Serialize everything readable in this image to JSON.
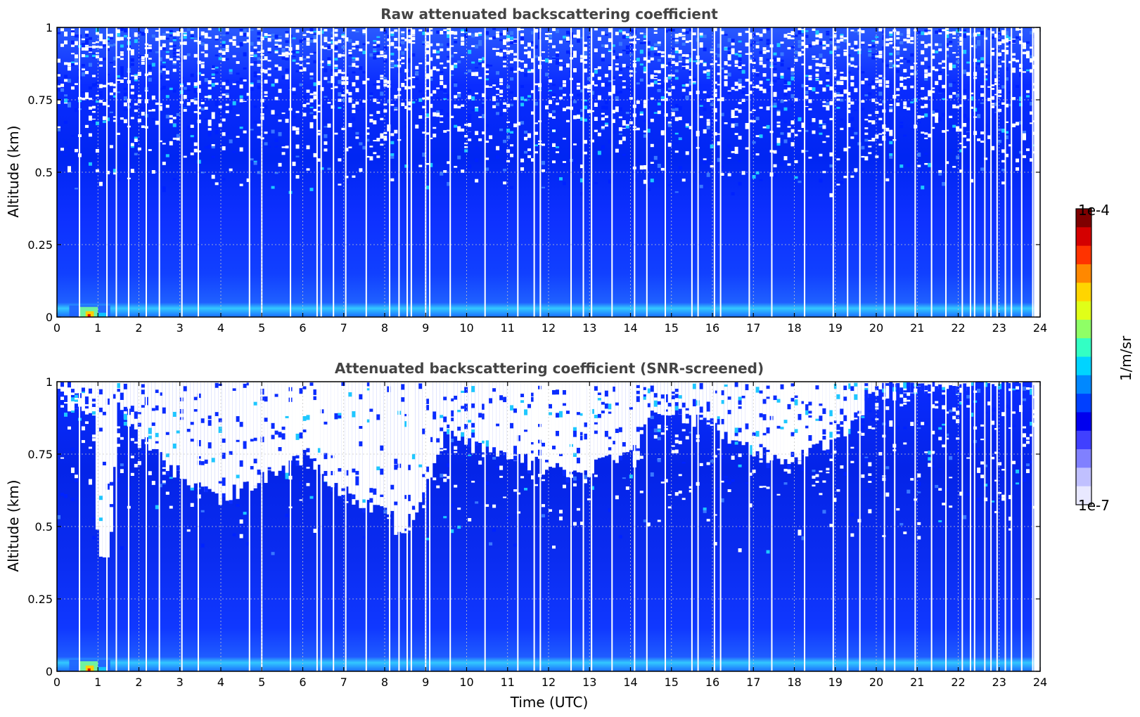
{
  "chart_data": [
    {
      "type": "heatmap",
      "title": "Raw attenuated backscattering coefficient",
      "xlabel": "",
      "ylabel": "Altitude (km)",
      "xlim": [
        0,
        24
      ],
      "ylim": [
        0,
        1
      ],
      "xticks": [
        "0",
        "1",
        "2",
        "3",
        "4",
        "5",
        "6",
        "7",
        "8",
        "9",
        "10",
        "11",
        "12",
        "13",
        "14",
        "15",
        "16",
        "17",
        "18",
        "19",
        "20",
        "21",
        "22",
        "23",
        "24"
      ],
      "yticks": [
        "0",
        "0.25",
        "0.5",
        "0.75",
        "1"
      ],
      "grid": true,
      "colormap": "jet",
      "profiles": {
        "surface_layer_top_km": 0.04,
        "aerosol_peak_hours": [
          0.3,
          1.3
        ],
        "noise_onset_altitude_km": 0.4,
        "gaps_hours": [
          0.55,
          1.22,
          1.45,
          1.75,
          2.18,
          2.5,
          3.05,
          3.45,
          4.7,
          5.0,
          5.7,
          6.35,
          6.45,
          6.75,
          7.05,
          7.55,
          8.12,
          8.35,
          8.55,
          8.65,
          9.0,
          9.1,
          9.6,
          10.45,
          11.25,
          11.65,
          11.8,
          12.55,
          12.85,
          13.05,
          13.55,
          14.1,
          14.4,
          14.85,
          15.5,
          15.65,
          16.05,
          16.2,
          16.9,
          17.45,
          18.25,
          18.95,
          19.3,
          19.6,
          20.2,
          20.45,
          20.95,
          21.35,
          21.7,
          22.1,
          22.3,
          22.4,
          22.65,
          22.8,
          22.95,
          23.15,
          23.3,
          23.55,
          23.82
        ]
      }
    },
    {
      "type": "heatmap",
      "title": "Attenuated backscattering coefficient (SNR-screened)",
      "xlabel": "Time (UTC)",
      "ylabel": "Altitude (km)",
      "xlim": [
        0,
        24
      ],
      "ylim": [
        0,
        1
      ],
      "xticks": [
        "0",
        "1",
        "2",
        "3",
        "4",
        "5",
        "6",
        "7",
        "8",
        "9",
        "10",
        "11",
        "12",
        "13",
        "14",
        "15",
        "16",
        "17",
        "18",
        "19",
        "20",
        "21",
        "22",
        "23",
        "24"
      ],
      "yticks": [
        "0",
        "0.25",
        "0.5",
        "0.75",
        "1"
      ],
      "grid": true,
      "colormap": "jet",
      "screened_top_km": [
        [
          0.0,
          0.95
        ],
        [
          0.4,
          0.92
        ],
        [
          0.9,
          0.9
        ],
        [
          1.0,
          0.42
        ],
        [
          1.3,
          0.38
        ],
        [
          1.5,
          0.9
        ],
        [
          2.0,
          0.8
        ],
        [
          3.0,
          0.68
        ],
        [
          4.0,
          0.6
        ],
        [
          5.0,
          0.66
        ],
        [
          6.0,
          0.74
        ],
        [
          7.0,
          0.62
        ],
        [
          7.5,
          0.56
        ],
        [
          8.0,
          0.6
        ],
        [
          8.4,
          0.45
        ],
        [
          8.8,
          0.58
        ],
        [
          9.5,
          0.82
        ],
        [
          10.5,
          0.76
        ],
        [
          11.5,
          0.72
        ],
        [
          12.5,
          0.68
        ],
        [
          13.5,
          0.72
        ],
        [
          14.2,
          0.74
        ],
        [
          14.3,
          0.88
        ],
        [
          15.0,
          0.9
        ],
        [
          16.0,
          0.84
        ],
        [
          17.0,
          0.76
        ],
        [
          18.0,
          0.72
        ],
        [
          19.0,
          0.8
        ],
        [
          20.0,
          0.96
        ],
        [
          24.0,
          1.0
        ]
      ]
    }
  ],
  "colorbar": {
    "max_label": "1e-4",
    "min_label": "1e-7",
    "unit_label": "1/m/sr",
    "colors": [
      "#7f0000",
      "#d40000",
      "#ff3300",
      "#ff8800",
      "#ffd500",
      "#e0ff18",
      "#8fff66",
      "#33ffc4",
      "#00d4ff",
      "#0088ff",
      "#0040ff",
      "#0000ee",
      "#4040ff",
      "#8080ff",
      "#c0c0ff",
      "#e8e8ff"
    ]
  },
  "colors": {
    "title": "#444444",
    "axis": "#000000",
    "grid": "#c8c8c8"
  }
}
